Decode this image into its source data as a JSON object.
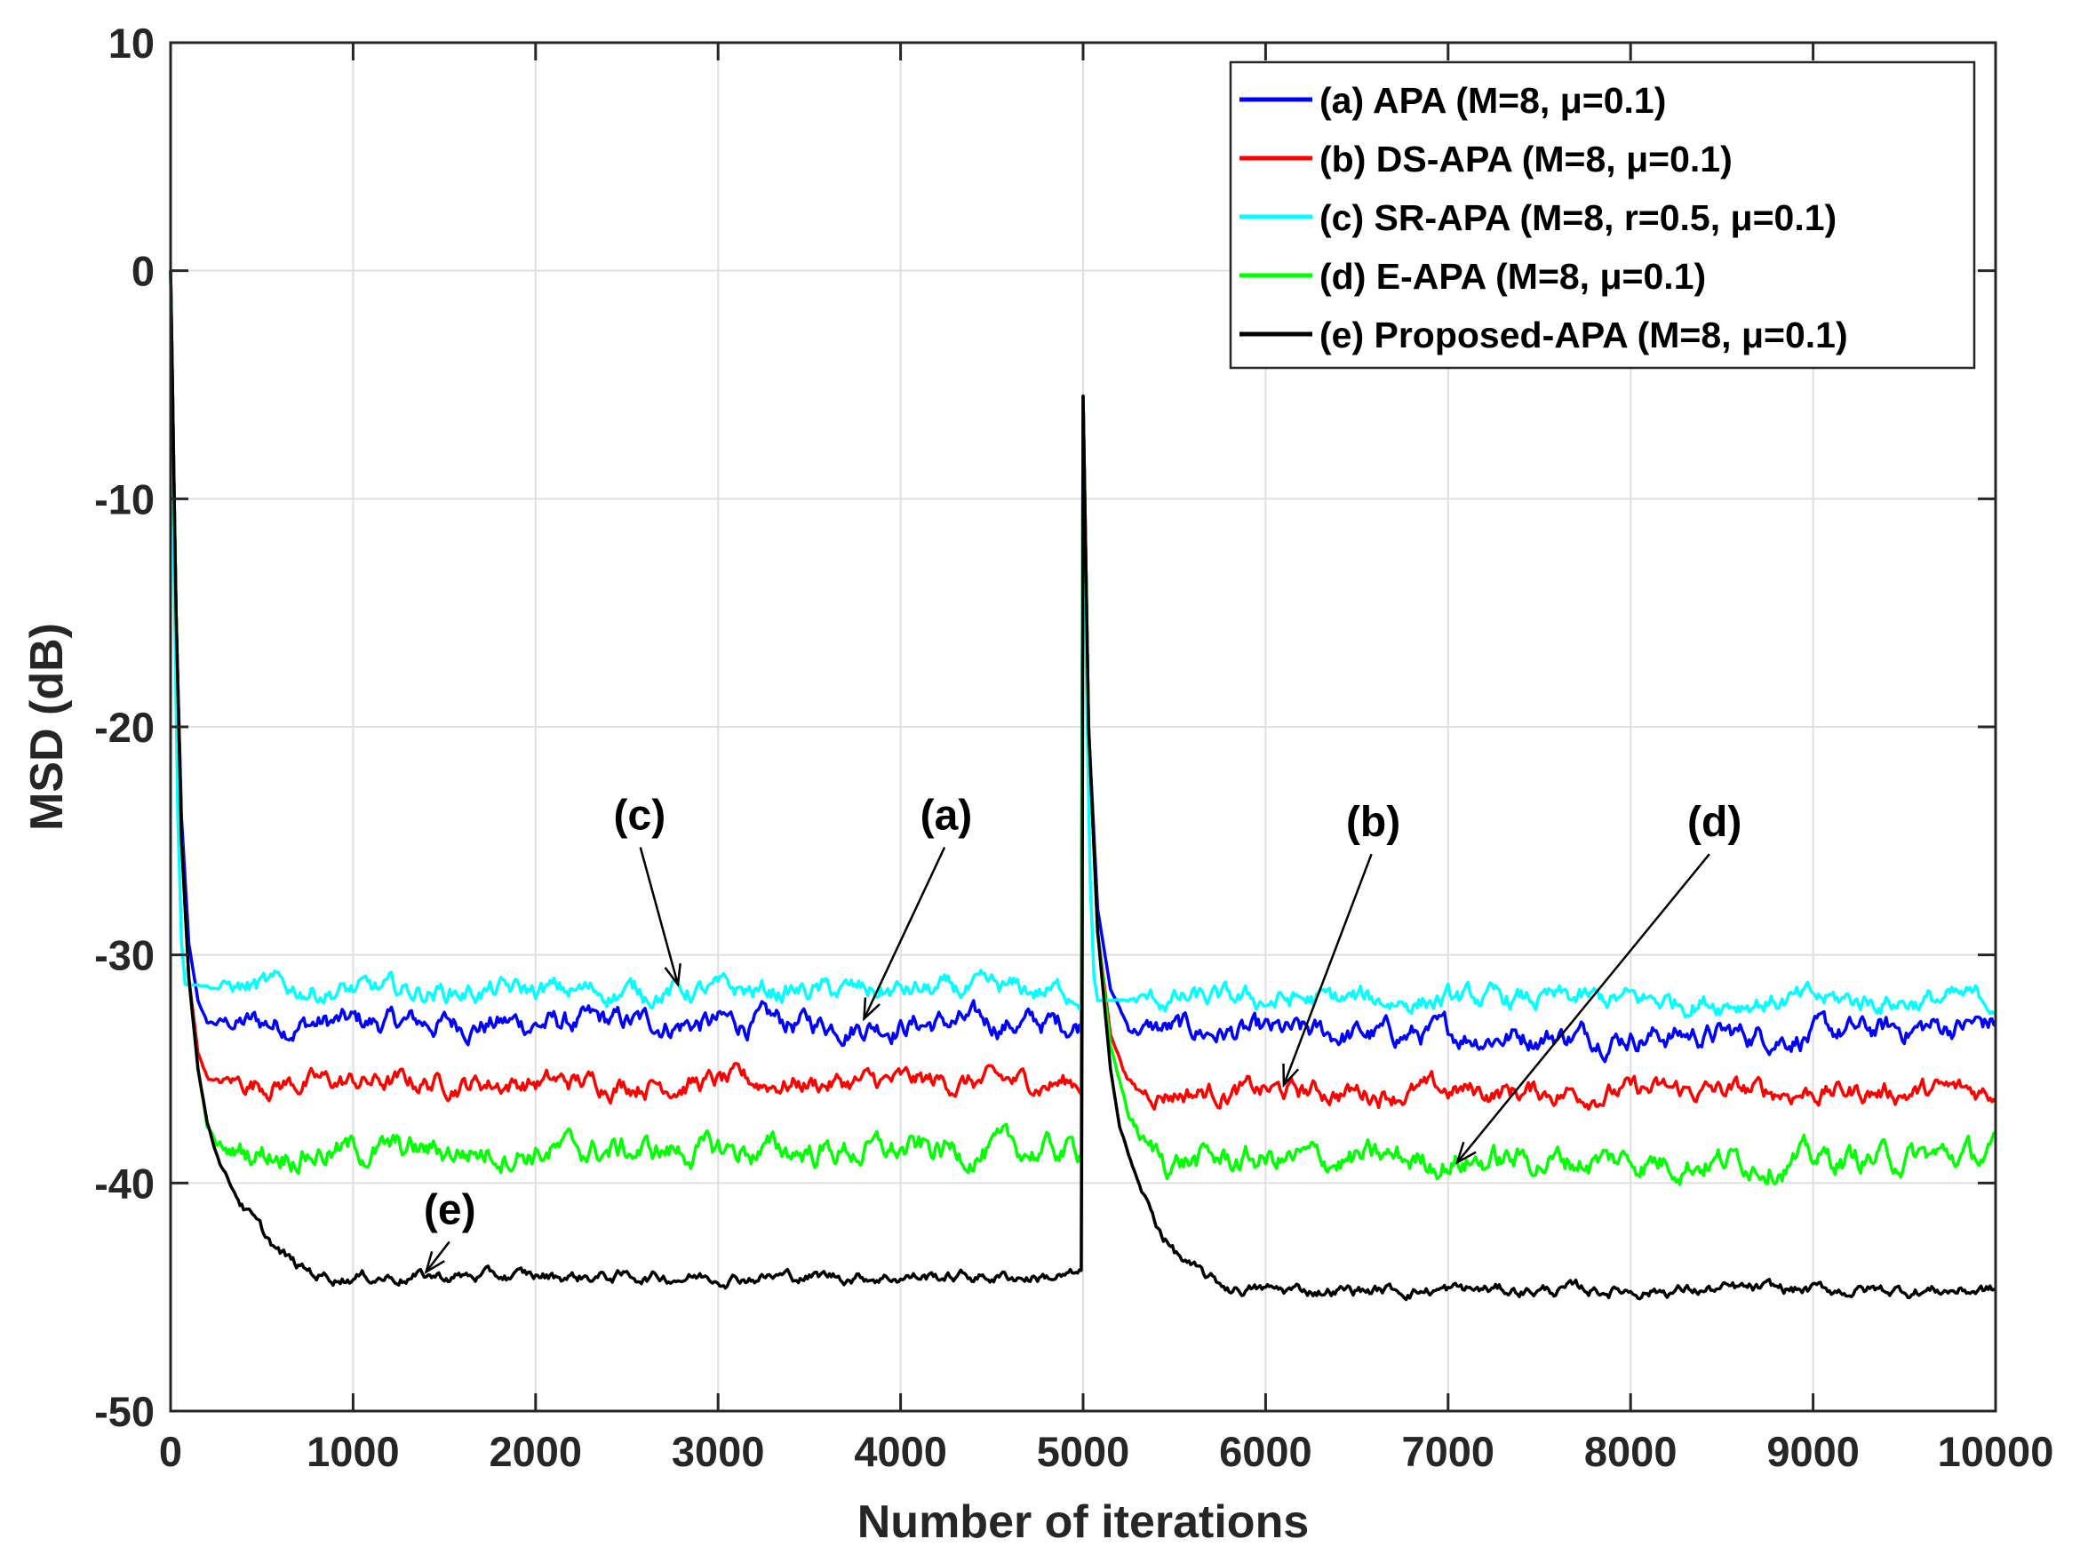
{
  "chart_data": {
    "type": "line",
    "title": "",
    "xlabel": "Number of iterations",
    "ylabel": "MSD (dB)",
    "xlim": [
      0,
      10000
    ],
    "ylim": [
      -50,
      10
    ],
    "xticks": [
      0,
      1000,
      2000,
      3000,
      4000,
      5000,
      6000,
      7000,
      8000,
      9000,
      10000
    ],
    "yticks": [
      10,
      0,
      -10,
      -20,
      -30,
      -40,
      -50
    ],
    "grid": true,
    "legend_position": "top-right",
    "series": [
      {
        "name": "(a) APA (M=8, μ=0.1)",
        "color": "#0000ff",
        "x": [
          0,
          30,
          60,
          100,
          150,
          200,
          1000,
          2000,
          3000,
          4000,
          4990,
          5000,
          5030,
          5080,
          5150,
          5250,
          6000,
          7000,
          8000,
          9000,
          10000
        ],
        "y": [
          0,
          -15,
          -24,
          -29.5,
          -32,
          -33,
          -33,
          -33,
          -33,
          -33,
          -33,
          -5.5,
          -20,
          -28,
          -31.5,
          -33.2,
          -33.5,
          -33.5,
          -33.5,
          -33.5,
          -33
        ]
      },
      {
        "name": "(b) DS-APA (M=8, μ=0.1)",
        "color": "#ff0000",
        "x": [
          0,
          30,
          60,
          100,
          150,
          200,
          250,
          1000,
          2000,
          3000,
          4000,
          4990,
          5000,
          5030,
          5080,
          5150,
          5250,
          5300,
          6000,
          7000,
          8000,
          9000,
          10000
        ],
        "y": [
          0,
          -15,
          -25,
          -31,
          -34.3,
          -35.3,
          -35.6,
          -35.6,
          -35.6,
          -35.6,
          -35.6,
          -35.6,
          -5.5,
          -20,
          -29,
          -33.5,
          -35.5,
          -36,
          -36,
          -36,
          -36,
          -36,
          -36
        ]
      },
      {
        "name": "(c) SR-APA (M=8, r=0.5, μ=0.1)",
        "color": "#00ffff",
        "x": [
          0,
          20,
          40,
          60,
          80,
          1000,
          2000,
          3000,
          4000,
          4990,
          5000,
          5020,
          5040,
          5060,
          5080,
          6000,
          7000,
          8000,
          9000,
          10000
        ],
        "y": [
          0,
          -14,
          -24,
          -29.5,
          -31.3,
          -31.6,
          -31.6,
          -31.6,
          -31.6,
          -31.6,
          -5.5,
          -19,
          -27,
          -31,
          -32,
          -32,
          -32,
          -32,
          -32,
          -32
        ]
      },
      {
        "name": "(d) E-APA (M=8, μ=0.1)",
        "color": "#00ff00",
        "x": [
          0,
          30,
          60,
          100,
          150,
          200,
          250,
          300,
          1000,
          2000,
          3000,
          4000,
          4990,
          5000,
          5030,
          5080,
          5150,
          5250,
          5350,
          5450,
          6000,
          7000,
          8000,
          9000,
          10000
        ],
        "y": [
          0,
          -15,
          -25,
          -31,
          -35,
          -37.5,
          -38.4,
          -38.6,
          -38.6,
          -38.6,
          -38.6,
          -38.6,
          -38.6,
          -5.5,
          -20,
          -29,
          -34,
          -37,
          -38.5,
          -39,
          -39,
          -39,
          -39,
          -39,
          -38.8
        ]
      },
      {
        "name": "(e) Proposed-APA (M=8, μ=0.1)",
        "color": "#000000",
        "x": [
          0,
          30,
          60,
          100,
          150,
          200,
          250,
          300,
          400,
          500,
          600,
          700,
          800,
          900,
          1000,
          2000,
          3000,
          4000,
          4990,
          4995,
          5000,
          5030,
          5080,
          5150,
          5200,
          5300,
          5400,
          5500,
          5600,
          5700,
          5800,
          6000,
          7000,
          8000,
          9000,
          10000
        ],
        "y": [
          0,
          -15,
          -25,
          -31,
          -35,
          -37.3,
          -38.6,
          -39.6,
          -41,
          -42.2,
          -43.1,
          -43.7,
          -44,
          -44.1,
          -44.1,
          -44.1,
          -44.1,
          -44.1,
          -44.1,
          -30,
          -5.5,
          -20,
          -29,
          -35,
          -37.5,
          -40,
          -41.8,
          -43,
          -43.8,
          -44.3,
          -44.6,
          -44.7,
          -44.7,
          -44.7,
          -44.7,
          -44.7
        ]
      }
    ],
    "annotations": [
      {
        "label": "(c)",
        "text_at": [
          2570,
          -24.5
        ],
        "arrow_to": [
          2780,
          -31.3
        ]
      },
      {
        "label": "(a)",
        "text_at": [
          4250,
          -24.5
        ],
        "arrow_to": [
          3800,
          -32.8
        ]
      },
      {
        "label": "(b)",
        "text_at": [
          6590,
          -24.8
        ],
        "arrow_to": [
          6100,
          -35.7
        ]
      },
      {
        "label": "(d)",
        "text_at": [
          8460,
          -24.8
        ],
        "arrow_to": [
          7050,
          -39.1
        ]
      },
      {
        "label": "(e)",
        "text_at": [
          1530,
          -41.8
        ],
        "arrow_to": [
          1400,
          -43.9
        ]
      }
    ]
  }
}
